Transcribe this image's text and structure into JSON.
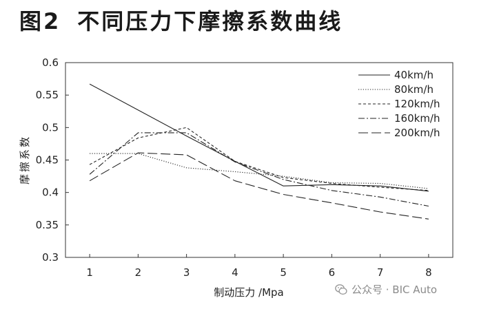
{
  "figure": {
    "number": "图2",
    "title": "不同压力下摩擦系数曲线"
  },
  "watermark": {
    "text": "公众号 · BIC Auto",
    "icon": "wechat-icon"
  },
  "chart_data": {
    "type": "line",
    "title": "不同压力下摩擦系数曲线",
    "xlabel": "制动压力 /Mpa",
    "ylabel": "摩擦系数",
    "x": [
      1,
      2,
      3,
      4,
      5,
      6,
      7,
      8
    ],
    "xlim": [
      0.5,
      8.5
    ],
    "ylim": [
      0.3,
      0.6
    ],
    "yticks": [
      "0.3",
      "0.35",
      "0.4",
      "0.45",
      "0.5",
      "0.55",
      "0.6"
    ],
    "xticks": [
      "1",
      "2",
      "3",
      "4",
      "5",
      "6",
      "7",
      "8"
    ],
    "grid": false,
    "legend_position": "top-right",
    "series": [
      {
        "name": "40km/h",
        "style": "solid",
        "values": [
          0.567,
          0.527,
          0.487,
          0.448,
          0.41,
          0.412,
          0.41,
          0.402
        ]
      },
      {
        "name": "80km/h",
        "style": "dotted",
        "values": [
          0.46,
          0.46,
          0.438,
          0.432,
          0.425,
          0.415,
          0.414,
          0.406
        ]
      },
      {
        "name": "120km/h",
        "style": "dashed",
        "values": [
          0.443,
          0.484,
          0.5,
          0.448,
          0.423,
          0.414,
          0.408,
          0.403
        ]
      },
      {
        "name": "160km/h",
        "style": "dashdot",
        "values": [
          0.428,
          0.492,
          0.492,
          0.447,
          0.42,
          0.403,
          0.393,
          0.379
        ]
      },
      {
        "name": "200km/h",
        "style": "longdash",
        "values": [
          0.418,
          0.461,
          0.458,
          0.418,
          0.397,
          0.384,
          0.37,
          0.359
        ]
      }
    ]
  }
}
